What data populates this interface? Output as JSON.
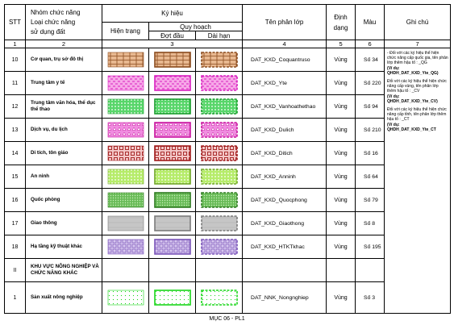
{
  "headers": {
    "stt": "STT",
    "group_line1": "Nhóm chức năng",
    "group_line2": "Loại chức năng",
    "group_line3": "sử dụng đất",
    "symbol": "Ký hiệu",
    "current": "Hiện trạng",
    "planning": "Quy hoạch",
    "phase1": "Đợt đầu",
    "longterm": "Dài hạn",
    "layer": "Tên phân lớp",
    "format_line1": "Định",
    "format_line2": "dạng",
    "color": "Màu",
    "note": "Ghi chú"
  },
  "colnums": [
    "1",
    "2",
    "3",
    "4",
    "5",
    "6",
    "7"
  ],
  "rows": [
    {
      "stt": "10",
      "name": "Cơ quan, trụ sở đô thị",
      "layer": "DAT_KXD_Coquantruso",
      "format": "Vùng",
      "color": "Số 34",
      "swatch": {
        "fill": "#e8b890",
        "stroke": "#8a4b1e",
        "pattern": "bricks"
      }
    },
    {
      "stt": "11",
      "name": "Trung tâm y tế",
      "layer": "DAT_KXD_Yte",
      "format": "Vùng",
      "color": "Số 220",
      "swatch": {
        "fill": "#f7a8e8",
        "stroke": "#d81fbf",
        "pattern": "dashes"
      }
    },
    {
      "stt": "12",
      "name": "Trung tâm văn hóa, thể dục thể thao",
      "layer": "DAT_KXD_Vanhoathethao",
      "format": "Vùng",
      "color": "Số 94",
      "swatch": {
        "fill": "#58d66a",
        "stroke": "#169b2a",
        "pattern": "dots"
      }
    },
    {
      "stt": "13",
      "name": "Dịch vụ, du lịch",
      "layer": "DAT_KXD_Dulich",
      "format": "Vùng",
      "color": "Số 210",
      "swatch": {
        "fill": "#f08ce0",
        "stroke": "#c8149e",
        "pattern": "triangles"
      }
    },
    {
      "stt": "14",
      "name": "Di tích, tôn giáo",
      "layer": "DAT_KXD_Ditich",
      "format": "Vùng",
      "color": "Số 16",
      "swatch": {
        "fill": "#f3c7c7",
        "stroke": "#a11b1b",
        "pattern": "squares"
      }
    },
    {
      "stt": "15",
      "name": "An ninh",
      "layer": "DAT_KXD_Anninh",
      "format": "Vùng",
      "color": "Số 64",
      "swatch": {
        "fill": "#b6ec6a",
        "stroke": "#6ea524",
        "pattern": "dots"
      }
    },
    {
      "stt": "16",
      "name": "Quốc phòng",
      "layer": "DAT_KXD_Quocphong",
      "format": "Vùng",
      "color": "Số 79",
      "swatch": {
        "fill": "#69bb58",
        "stroke": "#2d7a1f",
        "pattern": "dense"
      }
    },
    {
      "stt": "17",
      "name": "Giao thông",
      "layer": "DAT_KXD_Giaothong",
      "format": "Vùng",
      "color": "Số 8",
      "swatch": {
        "fill": "#c6c6c6",
        "stroke": "#7b7b7b",
        "pattern": "grey"
      }
    },
    {
      "stt": "18",
      "name": "Hạ tầng kỹ thuật khác",
      "layer": "DAT_KXD_HTKTkhac",
      "format": "Vùng",
      "color": "Số 195",
      "swatch": {
        "fill": "#d8c8f0",
        "stroke": "#7a54b8",
        "pattern": "boxes"
      }
    },
    {
      "stt": "II",
      "name": "KHU VỰC NÔNG NGHIỆP VÀ CHỨC NĂNG KHÁC",
      "layer": "",
      "format": "",
      "color": "",
      "swatch": null
    },
    {
      "stt": "1",
      "name": "Sản xuất nông nghiệp",
      "layer": "DAT_NNK_Nongnghiep",
      "format": "Vùng",
      "color": "Số 3",
      "swatch": {
        "fill": "#ffffff",
        "stroke": "#1ad61a",
        "pattern": "sparse"
      }
    }
  ],
  "notes": [
    {
      "text": "- Đối với các ký hiệu thể hiện chức năng cấp quốc gia, tên phân lớp thêm hậu tố : _QG",
      "example": "(Ví dụ: QHDH_DAT_KXD_Yte_QG)"
    },
    {
      "text": "Đối với các ký hiệu thể hiện chức năng cấp vùng, tên phân lớp thêm hậu tố : _CV",
      "example": "(Ví dụ: QHDH_DAT_KXD_Yte_CV)"
    },
    {
      "text": "Đối với các ký hiệu thể hiện chức năng cấp tỉnh, tên phân lớp thêm hậu tố : _CT",
      "example": "(Ví dụ: QHDH_DAT_KXD_Yte_CT"
    }
  ],
  "footer": "MỤC 06 - PL1"
}
